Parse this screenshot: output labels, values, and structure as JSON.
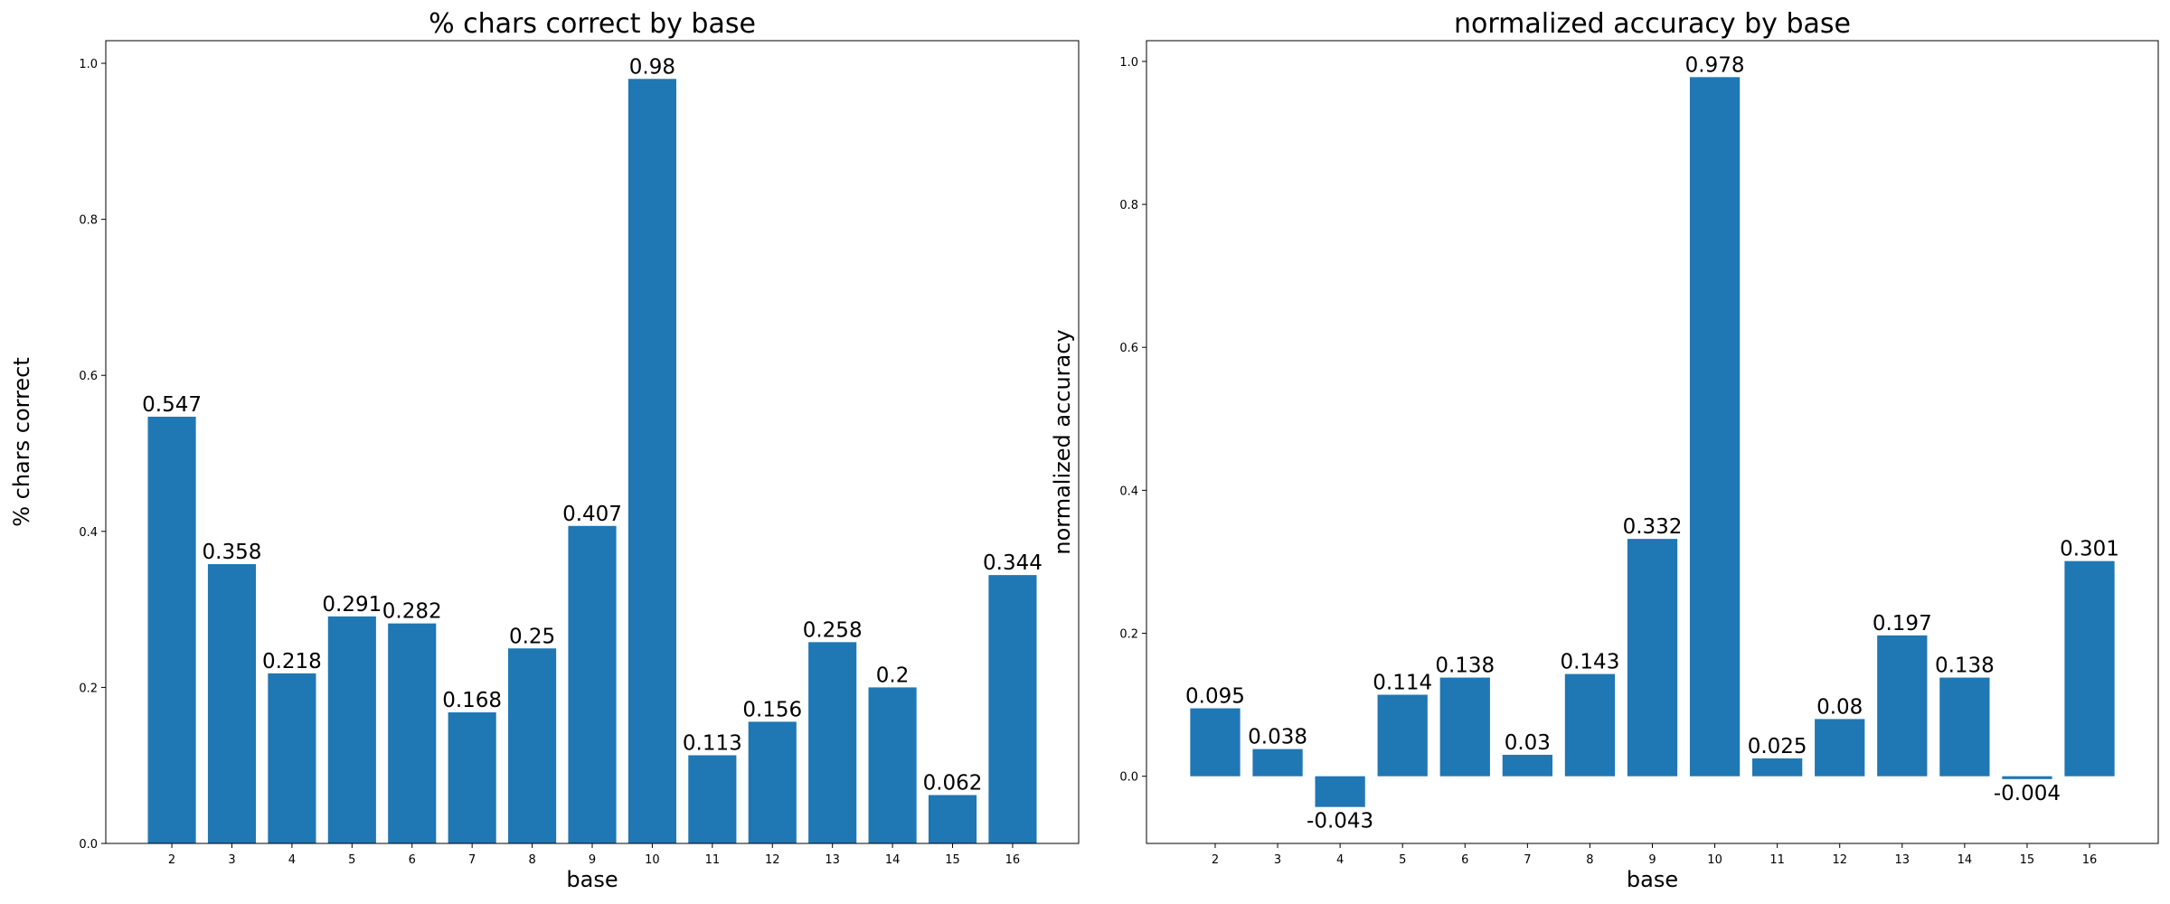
{
  "chart_data": [
    {
      "type": "bar",
      "title": "% chars correct by base",
      "xlabel": "base",
      "ylabel": "% chars correct",
      "categories": [
        "2",
        "3",
        "4",
        "5",
        "6",
        "7",
        "8",
        "9",
        "10",
        "11",
        "12",
        "13",
        "14",
        "15",
        "16"
      ],
      "values": [
        0.547,
        0.358,
        0.218,
        0.291,
        0.282,
        0.168,
        0.25,
        0.407,
        0.98,
        0.113,
        0.156,
        0.258,
        0.2,
        0.062,
        0.344
      ],
      "value_labels": [
        "0.547",
        "0.358",
        "0.218",
        "0.291",
        "0.282",
        "0.168",
        "0.25",
        "0.407",
        "0.98",
        "0.113",
        "0.156",
        "0.258",
        "0.2",
        "0.062",
        "0.344"
      ],
      "ylim": [
        0,
        1.029
      ],
      "yticks": [
        0.0,
        0.2,
        0.4,
        0.6,
        0.8,
        1.0
      ],
      "ytick_labels": [
        "0.0",
        "0.2",
        "0.4",
        "0.6",
        "0.8",
        "1.0"
      ],
      "grid": false,
      "color": "#1f77b4"
    },
    {
      "type": "bar",
      "title": "normalized accuracy by base",
      "xlabel": "base",
      "ylabel": "normalized accuracy",
      "categories": [
        "2",
        "3",
        "4",
        "5",
        "6",
        "7",
        "8",
        "9",
        "10",
        "11",
        "12",
        "13",
        "14",
        "15",
        "16"
      ],
      "values": [
        0.095,
        0.038,
        -0.043,
        0.114,
        0.138,
        0.03,
        0.143,
        0.332,
        0.978,
        0.025,
        0.08,
        0.197,
        0.138,
        -0.004,
        0.301
      ],
      "value_labels": [
        "0.095",
        "0.038",
        "-0.043",
        "0.114",
        "0.138",
        "0.03",
        "0.143",
        "0.332",
        "0.978",
        "0.025",
        "0.08",
        "0.197",
        "0.138",
        "-0.004",
        "0.301"
      ],
      "ylim": [
        -0.094,
        1.029
      ],
      "yticks": [
        0.0,
        0.2,
        0.4,
        0.6,
        0.8,
        1.0
      ],
      "ytick_labels": [
        "0.0",
        "0.2",
        "0.4",
        "0.6",
        "0.8",
        "1.0"
      ],
      "grid": false,
      "color": "#1f77b4"
    }
  ]
}
